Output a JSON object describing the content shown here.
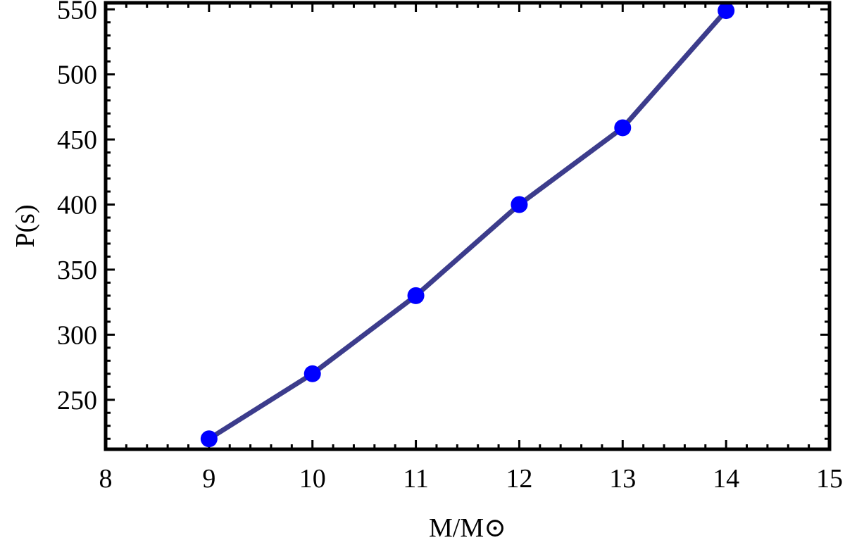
{
  "chart_data": {
    "type": "line",
    "title": "",
    "xlabel": "M/M⊙",
    "ylabel": "P(s)",
    "xlim": [
      8,
      15
    ],
    "ylim": [
      212,
      555
    ],
    "x_ticks": [
      8,
      9,
      10,
      11,
      12,
      13,
      14,
      15
    ],
    "y_ticks": [
      250,
      300,
      350,
      400,
      450,
      500,
      550
    ],
    "grid": false,
    "series": [
      {
        "x": [
          9,
          10,
          11,
          12,
          13,
          14
        ],
        "y": [
          220,
          270,
          330,
          400,
          459,
          549
        ],
        "line_color": "#3c3c8c",
        "marker_color": "#0000ff"
      }
    ]
  }
}
